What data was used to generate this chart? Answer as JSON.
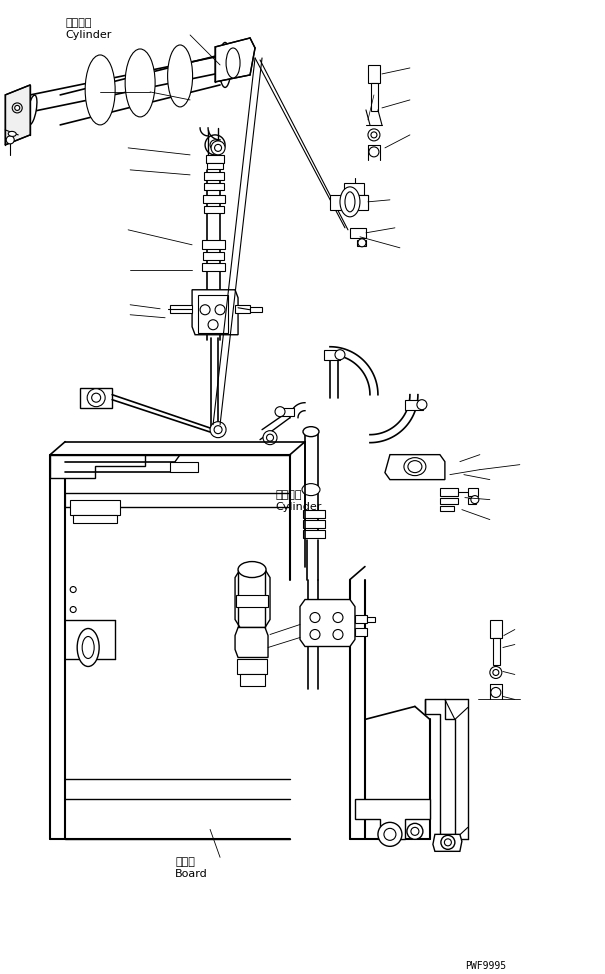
{
  "bg_color": "#ffffff",
  "line_color": "#000000",
  "lw": 0.8,
  "figsize": [
    6.05,
    9.74
  ],
  "dpi": 100,
  "labels": {
    "cyl_jp": "シリンダ",
    "cyl_en": "Cylinder",
    "cyl2_jp": "シリンダ",
    "cyl2_en": "Cylinder",
    "board_jp": "ボード",
    "board_en": "Board",
    "code": "PWF9995"
  }
}
